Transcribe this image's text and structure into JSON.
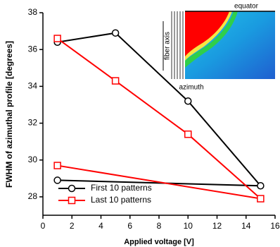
{
  "chart_data": {
    "type": "line",
    "x_label": "Applied voltage [V]",
    "y_label": "FWHM of azimuthal profile [degrees]",
    "x": [
      1,
      5,
      10,
      15,
      1
    ],
    "series": [
      {
        "name": "First 10 patterns",
        "color": "#000000",
        "marker": "circle",
        "values": [
          36.4,
          36.9,
          33.2,
          28.6,
          28.9
        ]
      },
      {
        "name": "Last 10 patterns",
        "color": "#ff0000",
        "marker": "square",
        "values": [
          36.6,
          34.3,
          31.4,
          27.9,
          29.7
        ]
      }
    ],
    "xlim": [
      0,
      16
    ],
    "xticks": [
      0,
      2,
      4,
      6,
      8,
      10,
      12,
      14,
      16
    ],
    "ylim": [
      27,
      38
    ],
    "yticks": [
      28,
      30,
      32,
      34,
      36,
      38
    ],
    "legend": "lower left",
    "inset": {
      "top_label": "equator",
      "side_label": "fiber axis",
      "bottom_label": "azimuth"
    }
  }
}
